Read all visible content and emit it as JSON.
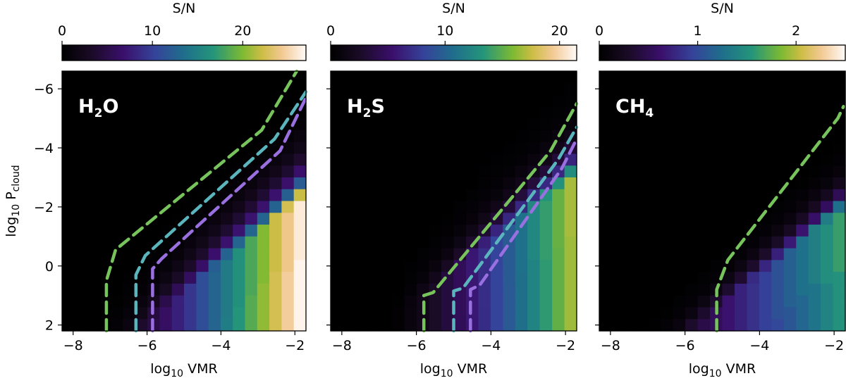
{
  "chart_data": [
    {
      "type": "heatmap",
      "id": "h2o",
      "title": "H2O",
      "molecule": {
        "base": "H",
        "sub": "2",
        "rest": "O"
      },
      "colorbar": {
        "label": "S/N",
        "range": [
          0,
          27
        ],
        "ticks": [
          0,
          10,
          20
        ],
        "tick_labels": [
          "0",
          "10",
          "20"
        ]
      },
      "xlabel": {
        "prefix": "log",
        "sub": "10",
        "text": " VMR"
      },
      "ylabel": {
        "prefix": "log",
        "sub": "10",
        "text": " P",
        "text_sub": "cloud"
      },
      "xlim": [
        -8.3,
        -1.7
      ],
      "ylim": [
        2.2,
        -6.6
      ],
      "xticks": [
        -8,
        -6,
        -4,
        -2
      ],
      "xtick_labels": [
        "−8",
        "−6",
        "−4",
        "−2"
      ],
      "yticks": [
        -6,
        -4,
        -2,
        0,
        2
      ],
      "ytick_labels": [
        "−6",
        "−4",
        "−2",
        "0",
        "2"
      ],
      "grid": {
        "nx": 20,
        "ny": 22,
        "x0": -8.3,
        "x1": -1.7,
        "y0": -6.6,
        "y1": 2.2
      },
      "model": {
        "scale": 1.02,
        "x_offset": 0.15,
        "plateau_ratio": 1.1,
        "bend": 1.5
      },
      "contours": [
        {
          "name": "contour-1",
          "color": "#78c45c",
          "points": [
            [
              -7.1,
              2.2
            ],
            [
              -7.1,
              0.5
            ],
            [
              -6.85,
              -0.55
            ],
            [
              -2.9,
              -4.6
            ],
            [
              -1.95,
              -6.6
            ]
          ]
        },
        {
          "name": "contour-2",
          "color": "#5bb5bd",
          "points": [
            [
              -6.3,
              2.2
            ],
            [
              -6.3,
              0.3
            ],
            [
              -6.05,
              -0.35
            ],
            [
              -2.55,
              -4.3
            ],
            [
              -1.7,
              -5.9
            ]
          ]
        },
        {
          "name": "contour-3",
          "color": "#9a6fe0",
          "points": [
            [
              -5.85,
              2.2
            ],
            [
              -5.85,
              0.1
            ],
            [
              -5.6,
              -0.25
            ],
            [
              -2.4,
              -3.9
            ],
            [
              -1.7,
              -5.7
            ]
          ]
        }
      ]
    },
    {
      "type": "heatmap",
      "id": "h2s",
      "title": "H2S",
      "molecule": {
        "base": "H",
        "sub": "2",
        "rest": "S"
      },
      "colorbar": {
        "label": "S/N",
        "range": [
          0,
          21.5
        ],
        "ticks": [
          0,
          10,
          20
        ],
        "tick_labels": [
          "0",
          "10",
          "20"
        ]
      },
      "xlabel": {
        "prefix": "log",
        "sub": "10",
        "text": " VMR"
      },
      "xlim": [
        -8.3,
        -1.7
      ],
      "ylim": [
        2.2,
        -6.6
      ],
      "xticks": [
        -8,
        -6,
        -4,
        -2
      ],
      "xtick_labels": [
        "−8",
        "−6",
        "−4",
        "−2"
      ],
      "yticks": [
        -6,
        -4,
        -2,
        0,
        2
      ],
      "grid": {
        "nx": 20,
        "ny": 22,
        "x0": -8.3,
        "x1": -1.7,
        "y0": -6.6,
        "y1": 2.2
      },
      "model": {
        "scale": 1.0,
        "x_offset": -0.6,
        "plateau_ratio": 0.95,
        "bend": 1.7
      },
      "contours": [
        {
          "name": "contour-1",
          "color": "#78c45c",
          "points": [
            [
              -5.8,
              2.2
            ],
            [
              -5.8,
              1.0
            ],
            [
              -5.55,
              0.9
            ],
            [
              -2.4,
              -3.9
            ],
            [
              -1.7,
              -5.5
            ]
          ]
        },
        {
          "name": "contour-2",
          "color": "#5bb5bd",
          "points": [
            [
              -5.0,
              2.2
            ],
            [
              -5.0,
              0.85
            ],
            [
              -4.75,
              0.75
            ],
            [
              -2.2,
              -3.6
            ],
            [
              -1.7,
              -4.7
            ]
          ]
        },
        {
          "name": "contour-3",
          "color": "#9a6fe0",
          "points": [
            [
              -4.55,
              2.2
            ],
            [
              -4.55,
              0.8
            ],
            [
              -4.3,
              0.65
            ],
            [
              -2.1,
              -3.3
            ],
            [
              -1.7,
              -4.3
            ]
          ]
        }
      ]
    },
    {
      "type": "heatmap",
      "id": "ch4",
      "title": "CH4",
      "molecule": {
        "base": "CH",
        "sub": "4",
        "rest": ""
      },
      "colorbar": {
        "label": "S/N",
        "range": [
          0,
          2.5
        ],
        "ticks": [
          0,
          1,
          2
        ],
        "tick_labels": [
          "0",
          "1",
          "2"
        ]
      },
      "xlabel": {
        "prefix": "log",
        "sub": "10",
        "text": " VMR"
      },
      "xlim": [
        -8.3,
        -1.7
      ],
      "ylim": [
        2.2,
        -6.6
      ],
      "xticks": [
        -8,
        -6,
        -4,
        -2
      ],
      "xtick_labels": [
        "−8",
        "−6",
        "−4",
        "−2"
      ],
      "yticks": [
        -6,
        -4,
        -2,
        0,
        2
      ],
      "grid": {
        "nx": 20,
        "ny": 22,
        "x0": -8.3,
        "x1": -1.7,
        "y0": -6.6,
        "y1": 2.2
      },
      "model": {
        "scale": 0.62,
        "x_offset": 0.55,
        "plateau_ratio": 0.7,
        "bend": 2.2
      },
      "contours": [
        {
          "name": "contour-1",
          "color": "#78c45c",
          "points": [
            [
              -5.15,
              2.2
            ],
            [
              -5.15,
              0.8
            ],
            [
              -4.85,
              -0.2
            ],
            [
              -1.9,
              -5.0
            ],
            [
              -1.75,
              -5.4
            ]
          ]
        }
      ]
    }
  ]
}
